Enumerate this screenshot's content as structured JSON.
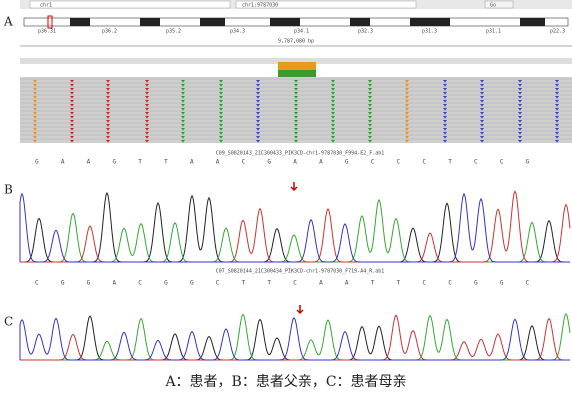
{
  "panels": {
    "a": {
      "label": "A",
      "locus_box": "chr1",
      "locus": "chr1:9787030",
      "go": "Go",
      "bands": [
        "p36.31",
        "p36.2",
        "p35.2",
        "p34.3",
        "p34.1",
        "p32.3",
        "p31.3",
        "p31.1",
        "p22.3"
      ],
      "ruler": "9,787,080 bp",
      "file": "C09_S0820143_21C300433_PIK3CD-chr1-9787030_F994-E2_F.ab1",
      "bases": "G A A G T T A A C G A A G C C C T C C G"
    },
    "b": {
      "label": "B",
      "file": "C07_S0820144_21C300434_PIK3CD-chr1-9787030_F719-A4_R.ab1",
      "bases": "C G G A C G G C T T C A A T T C C G G C"
    },
    "c": {
      "label": "C"
    }
  },
  "caption": "A：患者，B：患者父亲，C：患者母亲"
}
